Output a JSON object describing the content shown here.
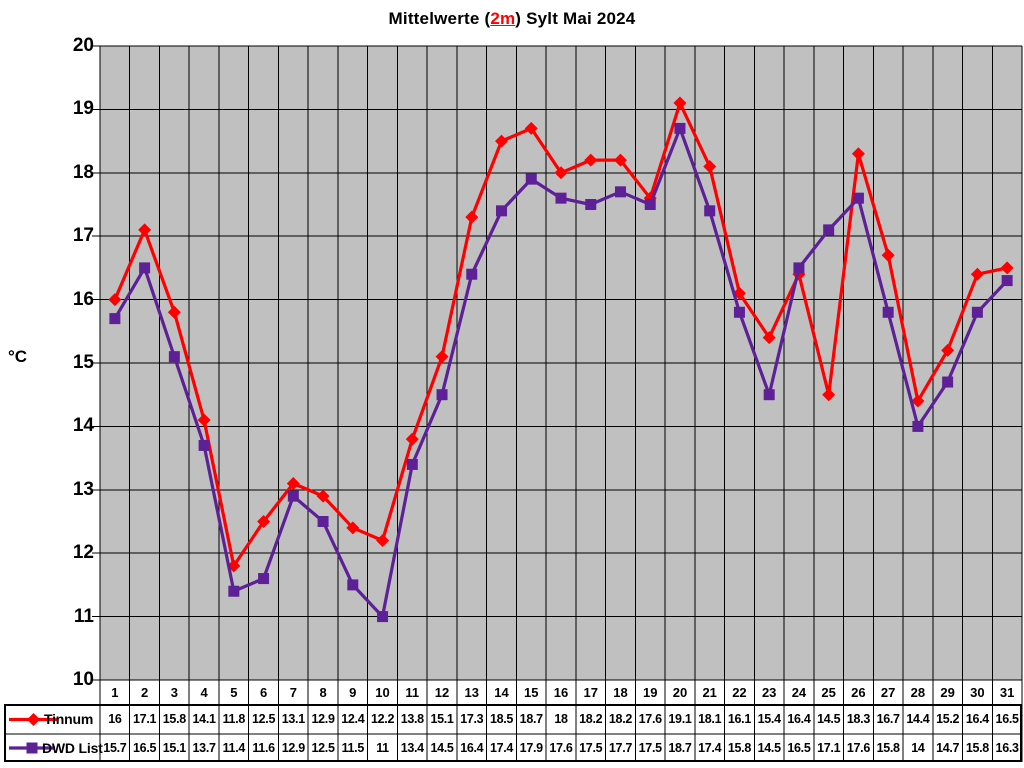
{
  "title": {
    "prefix": "Mittelwerte (",
    "highlight": "2m",
    "suffix": ") Sylt Mai 2024",
    "highlight_color": "#FF0000"
  },
  "chart_data": {
    "type": "line",
    "title": "Mittelwerte (2m) Sylt Mai 2024",
    "xlabel": "",
    "ylabel": "°C",
    "ylim": [
      10,
      20
    ],
    "ytick_step": 1,
    "yticks": [
      "10",
      "11",
      "12",
      "13",
      "14",
      "15",
      "16",
      "17",
      "18",
      "19",
      "20"
    ],
    "grid": "both",
    "plot_bg": "#C0C0C0",
    "grid_color": "#000000",
    "legend_position": "table-left",
    "x": [
      1,
      2,
      3,
      4,
      5,
      6,
      7,
      8,
      9,
      10,
      11,
      12,
      13,
      14,
      15,
      16,
      17,
      18,
      19,
      20,
      21,
      22,
      23,
      24,
      25,
      26,
      27,
      28,
      29,
      30,
      31
    ],
    "series": [
      {
        "name": "Tinnum",
        "color": "#FF0000",
        "marker": "diamond",
        "values": [
          16,
          17.1,
          15.8,
          14.1,
          11.8,
          12.5,
          13.1,
          12.9,
          12.4,
          12.2,
          13.8,
          15.1,
          17.3,
          18.5,
          18.7,
          18,
          18.2,
          18.2,
          17.6,
          19.1,
          18.1,
          16.1,
          15.4,
          16.4,
          14.5,
          18.3,
          16.7,
          14.4,
          15.2,
          16.4,
          16.5
        ]
      },
      {
        "name": "DWD List",
        "color": "#5E2096",
        "marker": "square",
        "values": [
          15.7,
          16.5,
          15.1,
          13.7,
          11.4,
          11.6,
          12.9,
          12.5,
          11.5,
          11,
          13.4,
          14.5,
          16.4,
          17.4,
          17.9,
          17.6,
          17.5,
          17.7,
          17.5,
          18.7,
          17.4,
          15.8,
          14.5,
          16.5,
          17.1,
          17.6,
          15.8,
          14,
          14.7,
          15.8,
          16.3
        ]
      }
    ]
  }
}
